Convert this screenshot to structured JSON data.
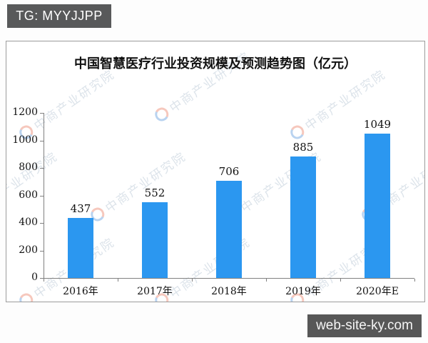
{
  "overlay": {
    "tg_badge": "TG: MYYJJPP",
    "site_badge": "web-site-ky.com",
    "badge_bg_color": "#58595a"
  },
  "watermark": {
    "text": "中商产业研究院"
  },
  "chart_data": {
    "type": "bar",
    "title": "中国智慧医疗行业投资规模及预测趋势图（亿元）",
    "categories": [
      "2016年",
      "2017年",
      "2018年",
      "2019年",
      "2020年E"
    ],
    "values": [
      437,
      552,
      706,
      885,
      1049
    ],
    "xlabel": "",
    "ylabel": "",
    "ylim": [
      0,
      1200
    ],
    "ytick_step": 200,
    "bar_color": "#2b97f0",
    "axis_color": "#808080",
    "grid": false,
    "legend": "none"
  }
}
